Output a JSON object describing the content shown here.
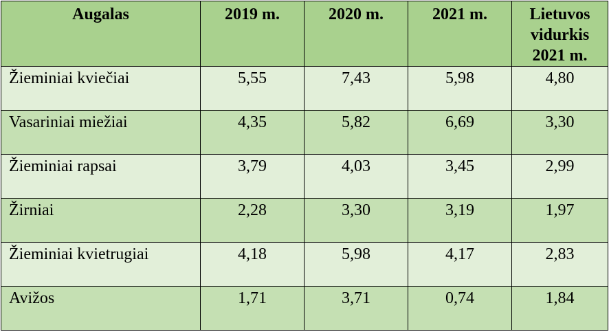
{
  "table": {
    "headers": [
      "Augalas",
      "2019 m.",
      "2020 m.",
      "2021 m.",
      "Lietuvos vidurkis 2021 m."
    ],
    "header_last_lines": [
      "Lietuvos",
      "vidurkis",
      "2021 m."
    ],
    "rows": [
      [
        "Žieminiai kviečiai",
        "5,55",
        "7,43",
        "5,98",
        "4,80"
      ],
      [
        "Vasariniai miežiai",
        "4,35",
        "5,82",
        "6,69",
        "3,30"
      ],
      [
        "Žieminiai rapsai",
        "3,79",
        "4,03",
        "3,45",
        "2,99"
      ],
      [
        "Žirniai",
        "2,28",
        "3,30",
        "3,19",
        "1,97"
      ],
      [
        "Žieminiai kvietrugiai",
        "4,18",
        "5,98",
        "4,17",
        "2,83"
      ],
      [
        "Avižos",
        "1,71",
        "3,71",
        "0,74",
        "1,84"
      ]
    ]
  },
  "colors": {
    "header_bg": "#a9d18e",
    "row_light": "#e2efd9",
    "row_dark": "#c5e0b3"
  }
}
